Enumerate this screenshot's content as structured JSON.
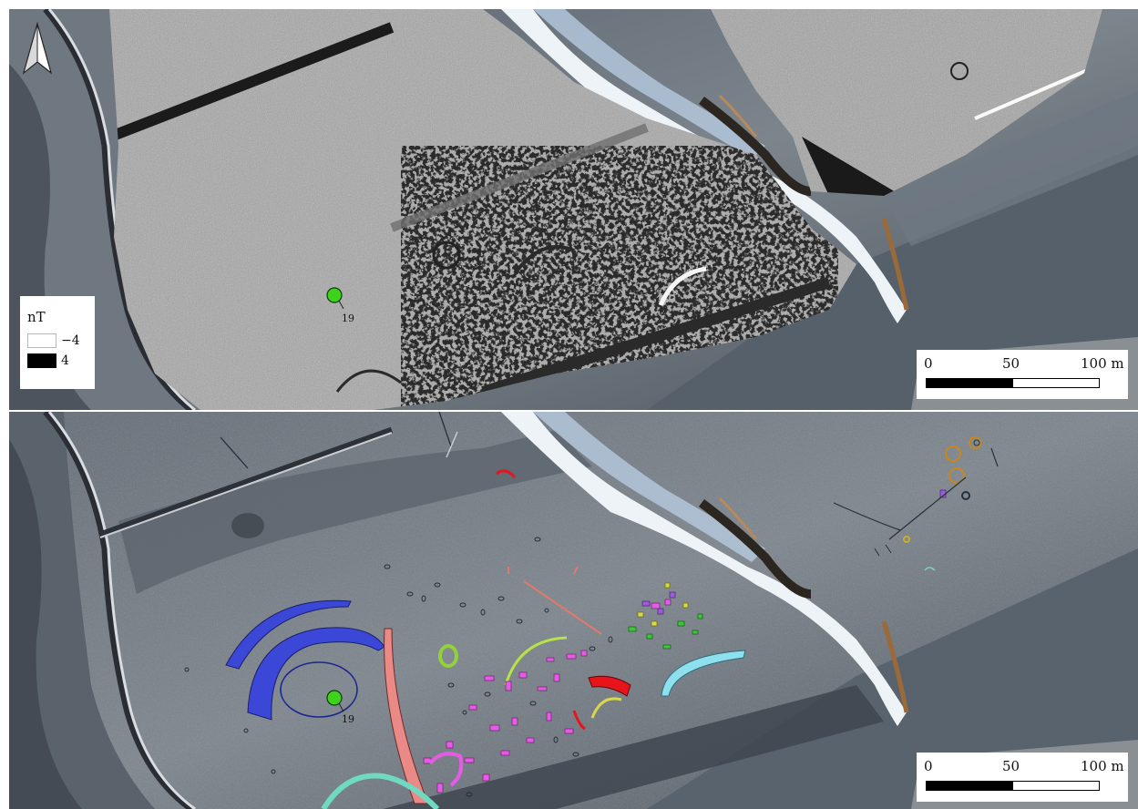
{
  "legend": {
    "title": "nT",
    "min_label": "−4",
    "max_label": "4",
    "min_color": "#ffffff",
    "max_color": "#000000"
  },
  "scalebar": {
    "labels": [
      "0",
      "50",
      "100 m"
    ]
  },
  "point_label": "19",
  "north_arrow_icon": "north-arrow-icon",
  "colors": {
    "marker": "#3fd21d",
    "blue_ditch": "#3b47d6",
    "salmon_ditch": "#e98a86",
    "teal_ditch": "#6fd9c2",
    "cyan_ditch": "#8ee0ee",
    "red_features": "#e8141b",
    "magenta_features": "#e45ce4",
    "lime_features": "#b9e24a",
    "yellow_features": "#d8d84a",
    "purple_features": "#9c5cd8",
    "green_features": "#3fc43f",
    "orange_rings": "#c8871a"
  }
}
